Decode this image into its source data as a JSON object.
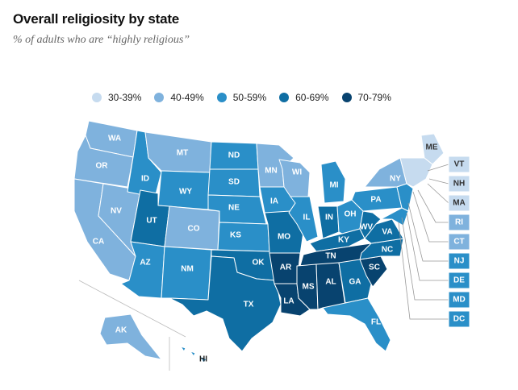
{
  "header": {
    "title": "Overall religiosity by state",
    "subtitle": "% of adults who are “highly religious”"
  },
  "legend": [
    {
      "label": "30-39%",
      "color": "#c6dbef"
    },
    {
      "label": "40-49%",
      "color": "#7fb2dd"
    },
    {
      "label": "50-59%",
      "color": "#2a8fc8"
    },
    {
      "label": "60-69%",
      "color": "#0f6ea3"
    },
    {
      "label": "70-79%",
      "color": "#08436f"
    }
  ],
  "states": {
    "WA": {
      "label": "WA",
      "bin": 1
    },
    "OR": {
      "label": "OR",
      "bin": 1
    },
    "CA": {
      "label": "CA",
      "bin": 1
    },
    "NV": {
      "label": "NV",
      "bin": 1
    },
    "ID": {
      "label": "ID",
      "bin": 2
    },
    "MT": {
      "label": "MT",
      "bin": 1
    },
    "WY": {
      "label": "WY",
      "bin": 2
    },
    "UT": {
      "label": "UT",
      "bin": 3
    },
    "CO": {
      "label": "CO",
      "bin": 1
    },
    "AZ": {
      "label": "AZ",
      "bin": 2
    },
    "NM": {
      "label": "NM",
      "bin": 2
    },
    "ND": {
      "label": "ND",
      "bin": 2
    },
    "SD": {
      "label": "SD",
      "bin": 2
    },
    "NE": {
      "label": "NE",
      "bin": 2
    },
    "KS": {
      "label": "KS",
      "bin": 2
    },
    "OK": {
      "label": "OK",
      "bin": 3
    },
    "TX": {
      "label": "TX",
      "bin": 3
    },
    "MN": {
      "label": "MN",
      "bin": 1
    },
    "IA": {
      "label": "IA",
      "bin": 2
    },
    "MO": {
      "label": "MO",
      "bin": 3
    },
    "AR": {
      "label": "AR",
      "bin": 4
    },
    "LA": {
      "label": "LA",
      "bin": 4
    },
    "WI": {
      "label": "WI",
      "bin": 1
    },
    "IL": {
      "label": "IL",
      "bin": 2
    },
    "MI": {
      "label": "MI",
      "bin": 2
    },
    "IN": {
      "label": "IN",
      "bin": 3
    },
    "OH": {
      "label": "OH",
      "bin": 2
    },
    "KY": {
      "label": "KY",
      "bin": 3
    },
    "TN": {
      "label": "TN",
      "bin": 4
    },
    "MS": {
      "label": "MS",
      "bin": 4
    },
    "AL": {
      "label": "AL",
      "bin": 4
    },
    "GA": {
      "label": "GA",
      "bin": 3
    },
    "FL": {
      "label": "FL",
      "bin": 2
    },
    "SC": {
      "label": "SC",
      "bin": 4
    },
    "NC": {
      "label": "NC",
      "bin": 3
    },
    "VA": {
      "label": "VA",
      "bin": 3
    },
    "WV": {
      "label": "WV",
      "bin": 3
    },
    "PA": {
      "label": "PA",
      "bin": 2
    },
    "NY": {
      "label": "NY",
      "bin": 1
    },
    "ME": {
      "label": "ME",
      "bin": 0
    },
    "AK": {
      "label": "AK",
      "bin": 1
    },
    "HI": {
      "label": "HI",
      "bin": 2
    }
  },
  "small_states": [
    {
      "label": "VT",
      "bin": 0
    },
    {
      "label": "NH",
      "bin": 0
    },
    {
      "label": "MA",
      "bin": 0
    },
    {
      "label": "RI",
      "bin": 1
    },
    {
      "label": "CT",
      "bin": 1
    },
    {
      "label": "NJ",
      "bin": 2
    },
    {
      "label": "DE",
      "bin": 2
    },
    {
      "label": "MD",
      "bin": 2
    },
    {
      "label": "DC",
      "bin": 2
    }
  ]
}
